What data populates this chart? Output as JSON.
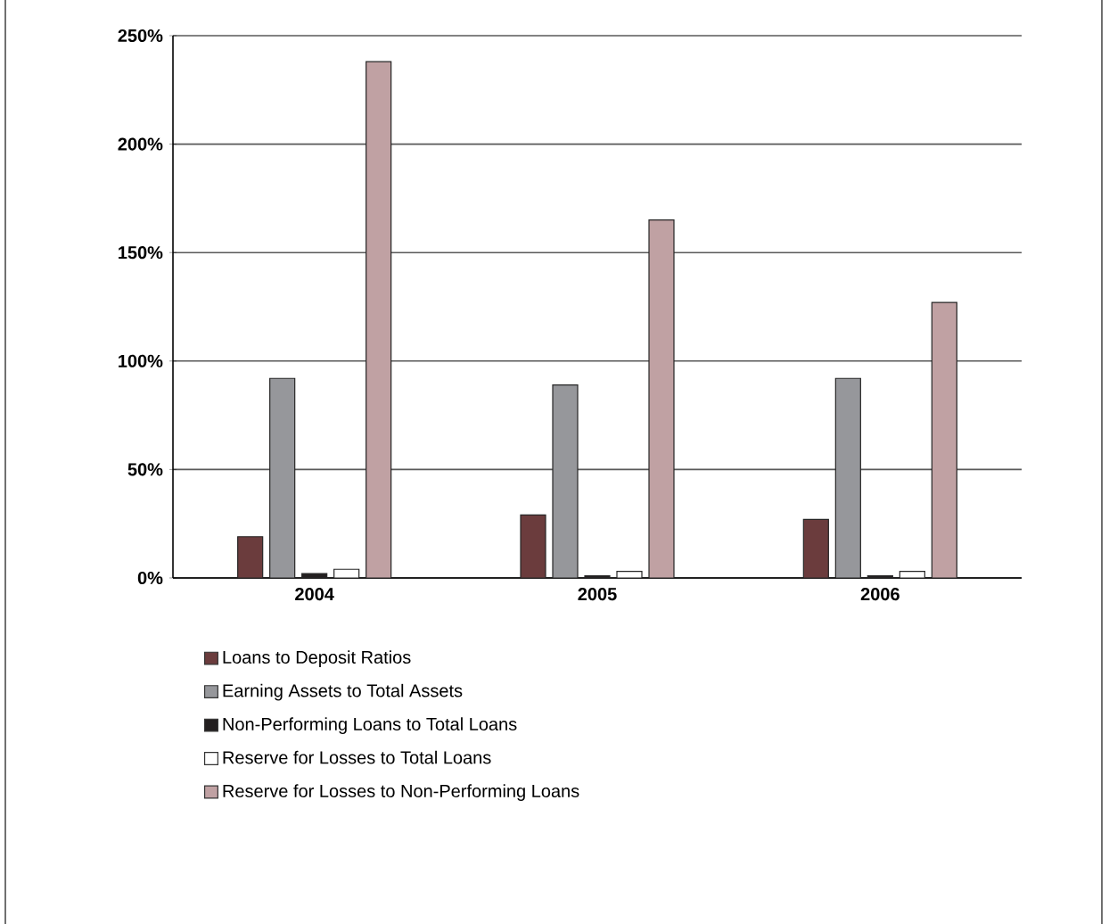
{
  "chart_data": {
    "type": "bar",
    "categories": [
      "2004",
      "2005",
      "2006"
    ],
    "series": [
      {
        "name": "Loans to Deposit Ratios",
        "color": "#6b3c3d",
        "values": [
          19,
          29,
          27
        ]
      },
      {
        "name": "Earning Assets to Total Assets",
        "color": "#96979b",
        "values": [
          92,
          89,
          92
        ]
      },
      {
        "name": "Non-Performing Loans to Total Loans",
        "color": "#231f20",
        "values": [
          2,
          1,
          1
        ]
      },
      {
        "name": "Reserve for Losses to Total Loans",
        "color": "#ffffff",
        "values": [
          4,
          3,
          3
        ]
      },
      {
        "name": "Reserve for Losses to Non-Performing Loans",
        "color": "#c0a1a3",
        "values": [
          238,
          165,
          127
        ]
      }
    ],
    "ylim": [
      0,
      250
    ],
    "yticks": [
      {
        "value": 0,
        "label": "0%"
      },
      {
        "value": 50,
        "label": "50%"
      },
      {
        "value": 100,
        "label": "100%"
      },
      {
        "value": 150,
        "label": "150%"
      },
      {
        "value": 200,
        "label": "200%"
      },
      {
        "value": 250,
        "label": "250%"
      }
    ],
    "grid": "y",
    "legend": "bottom"
  }
}
